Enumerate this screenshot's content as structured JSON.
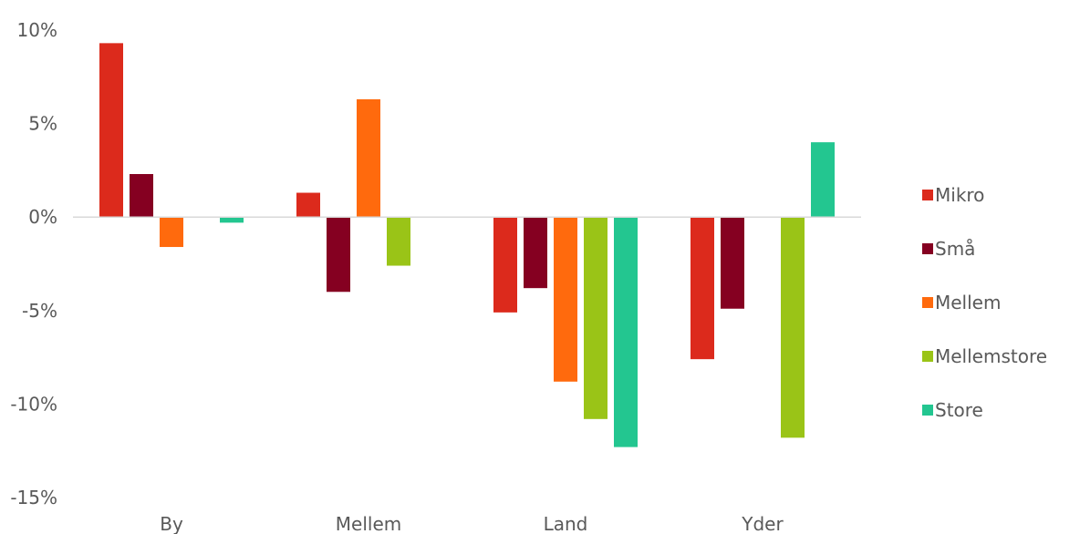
{
  "chart_data": {
    "type": "bar",
    "categories": [
      "By",
      "Mellem",
      "Land",
      "Yder"
    ],
    "series": [
      {
        "name": "Mikro",
        "color": "#DC2A1C",
        "values": [
          9.3,
          1.3,
          -5.1,
          -7.6
        ]
      },
      {
        "name": "Små",
        "color": "#850021",
        "values": [
          2.3,
          -4.0,
          -3.8,
          -4.9
        ]
      },
      {
        "name": "Mellem",
        "color": "#FF6A0D",
        "values": [
          -1.6,
          6.3,
          -8.8,
          null
        ]
      },
      {
        "name": "Mellemstore",
        "color": "#9AC417",
        "values": [
          null,
          -2.6,
          -10.8,
          -11.8
        ]
      },
      {
        "name": "Store",
        "color": "#23C690",
        "values": [
          -0.3,
          null,
          -12.3,
          4.0
        ]
      }
    ],
    "y_ticks": [
      "10%",
      "5%",
      "0%",
      "-5%",
      "-10%",
      "-15%"
    ],
    "ylim": [
      -15,
      10
    ],
    "grid": false,
    "legend": "right",
    "title": "",
    "xlabel": "",
    "ylabel": ""
  }
}
